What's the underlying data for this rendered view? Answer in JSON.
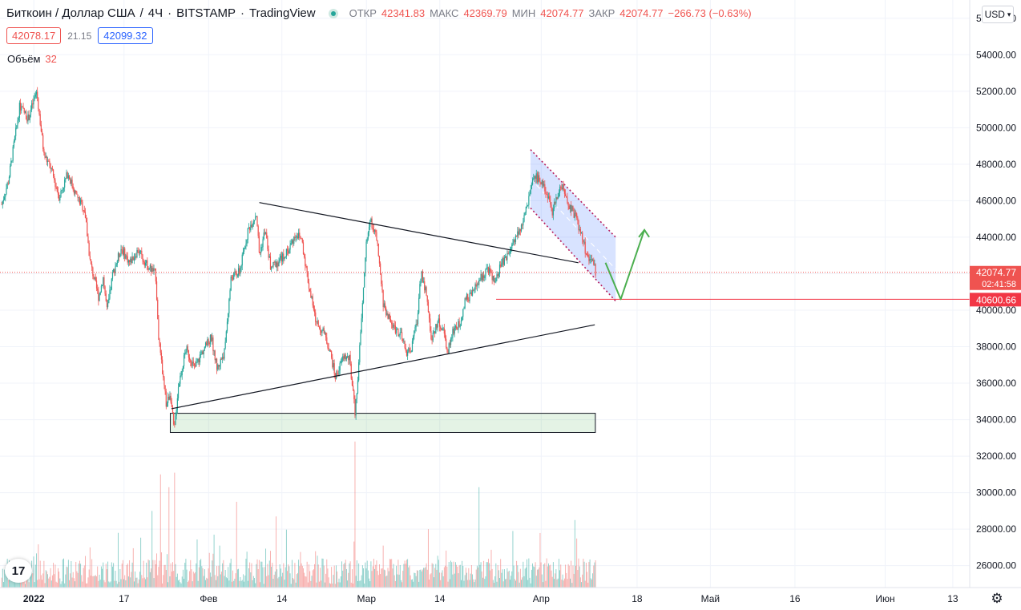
{
  "header": {
    "symbol": "Биткоин / Доллар США",
    "interval": "4Ч",
    "exchange": "BITSTAMP",
    "provider": "TradingView",
    "ohlc": {
      "open_label": "ОТКР",
      "open": "42341.83",
      "high_label": "МАКС",
      "high": "42369.79",
      "low_label": "МИН",
      "low": "42074.77",
      "close_label": "ЗАКР",
      "close": "42074.77",
      "change": "−266.73 (−0.63%)"
    },
    "bid": "42078.17",
    "spread": "21.15",
    "ask": "42099.32",
    "volume_label": "Объём",
    "volume_value": "32"
  },
  "currency": {
    "label": "USD"
  },
  "logo": {
    "text": "17"
  },
  "colors": {
    "up": "#26a69a",
    "down": "#ef5350",
    "channel": "#2962ff",
    "zone": "#4caf50",
    "arrow": "#4caf50",
    "level": "#f23645"
  },
  "chart_data": {
    "type": "candlestick",
    "ylim": [
      24800,
      57000
    ],
    "y_ticks": [
      "56000.00",
      "54000.00",
      "52000.00",
      "50000.00",
      "48000.00",
      "46000.00",
      "44000.00",
      "42000.00",
      "40000.00",
      "38000.00",
      "36000.00",
      "34000.00",
      "32000.00",
      "30000.00",
      "28000.00",
      "26000.00"
    ],
    "x_ticks": [
      {
        "day": 0,
        "label": "2022"
      },
      {
        "day": 16,
        "label": "17"
      },
      {
        "day": 31,
        "label": "Фев"
      },
      {
        "day": 44,
        "label": "14"
      },
      {
        "day": 59,
        "label": "Мар"
      },
      {
        "day": 72,
        "label": "14"
      },
      {
        "day": 90,
        "label": "Апр"
      },
      {
        "day": 107,
        "label": "18"
      },
      {
        "day": 120,
        "label": "Май"
      },
      {
        "day": 135,
        "label": "16"
      },
      {
        "day": 151,
        "label": "Июн"
      },
      {
        "day": 163,
        "label": "13"
      }
    ],
    "x_range_days": [
      -6,
      166
    ],
    "last_day": 99.7,
    "current_price": {
      "value": "42074.77",
      "countdown": "02:41:58"
    },
    "level_line": {
      "value": "40600.66",
      "price": 40600.66,
      "from_day": 82
    },
    "anchors": [
      [
        -5.7,
        45800
      ],
      [
        -4.5,
        47100
      ],
      [
        -2.5,
        51200
      ],
      [
        -1,
        50500
      ],
      [
        0.5,
        52000
      ],
      [
        1.8,
        48500
      ],
      [
        3,
        47800
      ],
      [
        4.5,
        46200
      ],
      [
        6,
        47500
      ],
      [
        7.5,
        46300
      ],
      [
        9,
        45500
      ],
      [
        10,
        42600
      ],
      [
        11.5,
        40700
      ],
      [
        12.3,
        41800
      ],
      [
        13,
        39900
      ],
      [
        14,
        42000
      ],
      [
        15.5,
        43400
      ],
      [
        17,
        42600
      ],
      [
        18.5,
        43300
      ],
      [
        20,
        42500
      ],
      [
        21.6,
        42000
      ],
      [
        22.2,
        38200
      ],
      [
        23.5,
        34800
      ],
      [
        24.2,
        35500
      ],
      [
        24.9,
        33300
      ],
      [
        25.6,
        35800
      ],
      [
        27,
        37900
      ],
      [
        28.5,
        36800
      ],
      [
        30,
        37800
      ],
      [
        31.5,
        38500
      ],
      [
        32.5,
        36800
      ],
      [
        33.8,
        37700
      ],
      [
        35,
        41800
      ],
      [
        36.5,
        42100
      ],
      [
        38,
        44400
      ],
      [
        39.5,
        45300
      ],
      [
        40,
        43000
      ],
      [
        41,
        44400
      ],
      [
        42,
        42300
      ],
      [
        43.5,
        42700
      ],
      [
        45,
        43200
      ],
      [
        46.5,
        44200
      ],
      [
        47.5,
        43900
      ],
      [
        48.7,
        41500
      ],
      [
        50,
        39400
      ],
      [
        51.5,
        38700
      ],
      [
        52.5,
        37800
      ],
      [
        53.5,
        36300
      ],
      [
        55,
        37500
      ],
      [
        56,
        37300
      ],
      [
        57,
        34300
      ],
      [
        58,
        38800
      ],
      [
        59,
        43900
      ],
      [
        59.8,
        44900
      ],
      [
        60.8,
        43900
      ],
      [
        62,
        40300
      ],
      [
        63.5,
        39200
      ],
      [
        65,
        38700
      ],
      [
        66,
        37700
      ],
      [
        67,
        37900
      ],
      [
        68,
        39500
      ],
      [
        68.7,
        42200
      ],
      [
        69.5,
        41000
      ],
      [
        70.6,
        38300
      ],
      [
        71.6,
        39400
      ],
      [
        72.6,
        38900
      ],
      [
        73.4,
        37800
      ],
      [
        74.5,
        39000
      ],
      [
        75.5,
        39200
      ],
      [
        76.5,
        40600
      ],
      [
        77.5,
        40800
      ],
      [
        79,
        41600
      ],
      [
        80.5,
        42300
      ],
      [
        81.8,
        41500
      ],
      [
        83,
        42600
      ],
      [
        84,
        43000
      ],
      [
        85.5,
        44100
      ],
      [
        87,
        45000
      ],
      [
        88.2,
        46800
      ],
      [
        89,
        47300
      ],
      [
        90.5,
        46900
      ],
      [
        92,
        45400
      ],
      [
        93.5,
        46900
      ],
      [
        95,
        45700
      ],
      [
        96,
        45200
      ],
      [
        97,
        44200
      ],
      [
        98,
        43100
      ],
      [
        99,
        42700
      ],
      [
        99.7,
        42074
      ]
    ],
    "volume_spikes": [
      [
        -5,
        25900
      ],
      [
        -2,
        25900
      ],
      [
        0,
        26500
      ],
      [
        10,
        27000
      ],
      [
        15,
        27800
      ],
      [
        21,
        29000
      ],
      [
        22.5,
        31000
      ],
      [
        24,
        30300
      ],
      [
        25,
        31100
      ],
      [
        33,
        27100
      ],
      [
        36,
        29500
      ],
      [
        43,
        28700
      ],
      [
        57,
        32800
      ],
      [
        62,
        27100
      ],
      [
        70,
        28000
      ],
      [
        79,
        30300
      ],
      [
        85,
        27900
      ],
      [
        91,
        26400
      ],
      [
        96,
        28500
      ]
    ],
    "drawings": {
      "upper_trendline": {
        "from": [
          40,
          45900
        ],
        "to": [
          96.6,
          42600
        ]
      },
      "lower_trendline": {
        "from": [
          24.4,
          34600
        ],
        "to": [
          99.5,
          39200
        ]
      },
      "support_zone": {
        "from_day": 24.2,
        "to_day": 99.6,
        "top": 34350,
        "bottom": 33300
      },
      "channel": {
        "top_from": [
          88.1,
          48800
        ],
        "top_to": [
          103.2,
          44000
        ],
        "bottom_from": [
          88.1,
          45600
        ],
        "bottom_to": [
          103.2,
          40500
        ]
      },
      "forecast_arrow": {
        "points": [
          [
            101.4,
            42600
          ],
          [
            104.1,
            40600
          ],
          [
            108.3,
            44400
          ]
        ]
      }
    }
  }
}
